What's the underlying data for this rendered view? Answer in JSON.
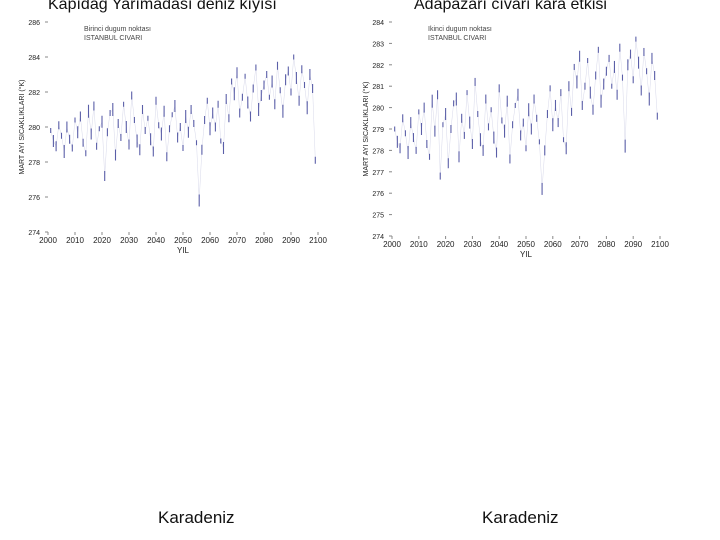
{
  "chart_data": [
    {
      "type": "line",
      "title": "Kapıdag Yarımadası deniz kıyısı",
      "legend": [
        "Birinci dugum noktası",
        "ISTANBUL CIVARI"
      ],
      "xlabel": "YIL",
      "ylabel": "MART AYI SICAKLIKLARI (°K)",
      "xlim": [
        2000,
        2100
      ],
      "ylim": [
        274,
        286
      ],
      "xticks": [
        2000,
        2010,
        2020,
        2030,
        2040,
        2050,
        2060,
        2070,
        2080,
        2090,
        2100
      ],
      "yticks": [
        274,
        276,
        278,
        280,
        282,
        284,
        286
      ],
      "series_color": "#5b5fa8",
      "x": [
        2001,
        2002,
        2003,
        2004,
        2005,
        2006,
        2007,
        2008,
        2009,
        2010,
        2011,
        2012,
        2013,
        2014,
        2015,
        2016,
        2017,
        2018,
        2019,
        2020,
        2021,
        2022,
        2023,
        2024,
        2025,
        2026,
        2027,
        2028,
        2029,
        2030,
        2031,
        2032,
        2033,
        2034,
        2035,
        2036,
        2037,
        2038,
        2039,
        2040,
        2041,
        2042,
        2043,
        2044,
        2045,
        2046,
        2047,
        2048,
        2049,
        2050,
        2051,
        2052,
        2053,
        2054,
        2055,
        2056,
        2057,
        2058,
        2059,
        2060,
        2061,
        2062,
        2063,
        2064,
        2065,
        2066,
        2067,
        2068,
        2069,
        2070,
        2071,
        2072,
        2073,
        2074,
        2075,
        2076,
        2077,
        2078,
        2079,
        2080,
        2081,
        2082,
        2083,
        2084,
        2085,
        2086,
        2087,
        2088,
        2089,
        2090,
        2091,
        2092,
        2093,
        2094,
        2095,
        2096,
        2097,
        2098,
        2099
      ],
      "values": [
        279.8,
        279.2,
        278.9,
        280.1,
        279.5,
        278.6,
        280.0,
        279.3,
        278.8,
        280.4,
        279.7,
        280.6,
        279.1,
        278.5,
        280.9,
        279.6,
        281.2,
        278.9,
        279.9,
        280.3,
        277.2,
        279.7,
        280.8,
        281.0,
        278.4,
        280.2,
        279.4,
        281.3,
        280.0,
        279.0,
        281.8,
        280.4,
        279.2,
        278.7,
        281.0,
        279.8,
        280.5,
        279.3,
        278.6,
        281.5,
        280.1,
        279.6,
        280.9,
        278.3,
        279.9,
        280.7,
        281.2,
        279.4,
        280.0,
        278.8,
        280.6,
        279.7,
        281.0,
        280.2,
        279.1,
        275.8,
        278.7,
        280.4,
        281.5,
        279.9,
        280.8,
        280.0,
        281.3,
        279.2,
        278.8,
        281.6,
        280.5,
        282.6,
        281.9,
        283.1,
        280.8,
        281.7,
        282.9,
        281.4,
        280.6,
        282.2,
        283.4,
        281.0,
        281.8,
        282.4,
        283.0,
        281.7,
        282.6,
        281.3,
        283.5,
        282.1,
        280.9,
        282.7,
        283.2,
        282.0,
        284.0,
        282.8,
        281.5,
        283.3,
        282.4,
        281.1,
        283.0,
        282.2,
        278.1
      ]
    },
    {
      "type": "line",
      "title": "Adapazarı cıvarı kara etkisi",
      "legend": [
        "Ikinci dugum noktası",
        "ISTANBUL CIVARI"
      ],
      "xlabel": "YIL",
      "ylabel": "MART AYI SICAKLIKLARI (°K)",
      "xlim": [
        2000,
        2100
      ],
      "ylim": [
        274,
        284
      ],
      "xticks": [
        2000,
        2010,
        2020,
        2030,
        2040,
        2050,
        2060,
        2070,
        2080,
        2090,
        2100
      ],
      "yticks": [
        274,
        275,
        276,
        277,
        278,
        279,
        280,
        281,
        282,
        283,
        284
      ],
      "series_color": "#5b5fa8",
      "x": [
        2001,
        2002,
        2003,
        2004,
        2005,
        2006,
        2007,
        2008,
        2009,
        2010,
        2011,
        2012,
        2013,
        2014,
        2015,
        2016,
        2017,
        2018,
        2019,
        2020,
        2021,
        2022,
        2023,
        2024,
        2025,
        2026,
        2027,
        2028,
        2029,
        2030,
        2031,
        2032,
        2033,
        2034,
        2035,
        2036,
        2037,
        2038,
        2039,
        2040,
        2041,
        2042,
        2043,
        2044,
        2045,
        2046,
        2047,
        2048,
        2049,
        2050,
        2051,
        2052,
        2053,
        2054,
        2055,
        2056,
        2057,
        2058,
        2059,
        2060,
        2061,
        2062,
        2063,
        2064,
        2065,
        2066,
        2067,
        2068,
        2069,
        2070,
        2071,
        2072,
        2073,
        2074,
        2075,
        2076,
        2077,
        2078,
        2079,
        2080,
        2081,
        2082,
        2083,
        2084,
        2085,
        2086,
        2087,
        2088,
        2089,
        2090,
        2091,
        2092,
        2093,
        2094,
        2095,
        2096,
        2097,
        2098,
        2099
      ],
      "values": [
        279.0,
        278.4,
        278.1,
        279.5,
        278.8,
        277.9,
        279.3,
        278.6,
        278.0,
        279.8,
        279.0,
        280.0,
        278.3,
        277.7,
        280.3,
        278.9,
        280.6,
        276.8,
        279.2,
        279.7,
        277.4,
        279.0,
        280.2,
        280.4,
        277.7,
        279.5,
        278.7,
        280.7,
        279.3,
        278.3,
        281.2,
        279.7,
        278.5,
        278.0,
        280.4,
        279.1,
        279.9,
        278.6,
        277.9,
        280.9,
        279.4,
        278.9,
        280.3,
        277.6,
        279.2,
        280.1,
        280.6,
        278.7,
        279.3,
        278.1,
        279.9,
        279.0,
        280.4,
        279.5,
        278.4,
        276.2,
        278.0,
        279.7,
        280.9,
        279.2,
        280.1,
        279.3,
        280.7,
        278.5,
        278.1,
        281.0,
        279.8,
        281.9,
        281.2,
        282.4,
        280.1,
        281.0,
        282.2,
        280.7,
        279.9,
        281.5,
        282.7,
        280.3,
        281.1,
        281.7,
        282.3,
        281.0,
        281.9,
        280.6,
        282.8,
        281.4,
        278.2,
        282.0,
        282.5,
        281.3,
        283.2,
        282.1,
        280.8,
        282.6,
        281.7,
        280.4,
        282.3,
        281.5,
        279.6
      ]
    }
  ],
  "footer": {
    "left": "Karadeniz",
    "right": "Karadeniz"
  }
}
